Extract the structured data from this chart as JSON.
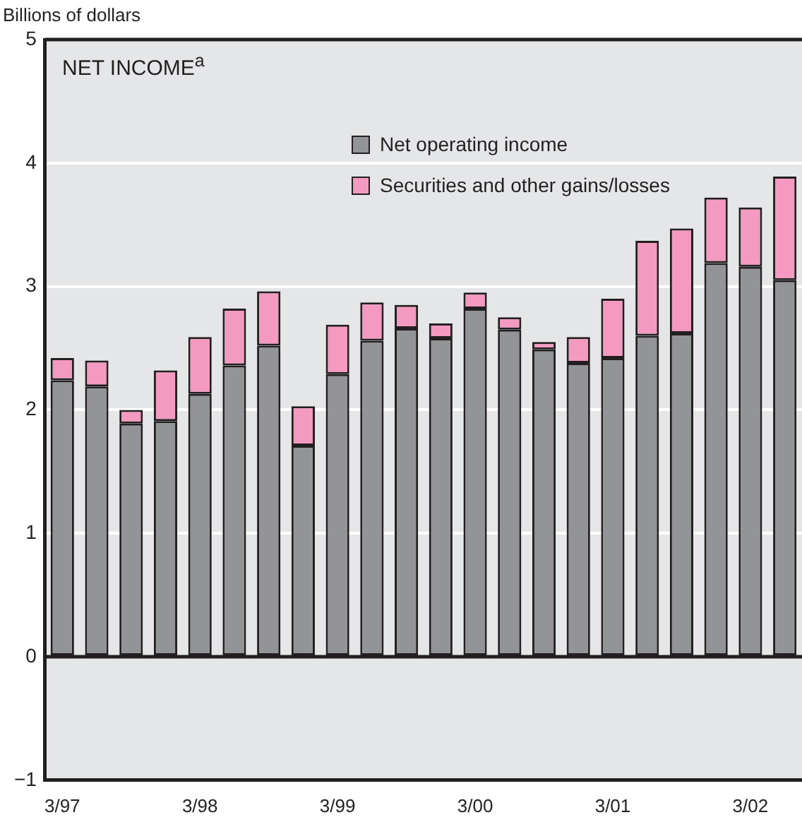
{
  "chart_data": {
    "type": "bar",
    "title": "NET INCOME$^{a}$",
    "ylabel": "Billions of dollars",
    "categories": [
      "3/97",
      null,
      null,
      null,
      "3/98",
      null,
      null,
      null,
      "3/99",
      null,
      null,
      null,
      "3/00",
      null,
      null,
      null,
      "3/01",
      null,
      null,
      null,
      "3/02",
      null
    ],
    "series": [
      {
        "name": "Net operating income",
        "color": "#929497",
        "values": [
          2.24,
          2.19,
          1.89,
          1.91,
          2.13,
          2.36,
          2.52,
          1.71,
          2.29,
          2.56,
          2.66,
          2.58,
          2.82,
          2.65,
          2.49,
          2.38,
          2.42,
          2.6,
          2.62,
          3.19,
          3.16,
          3.05
        ]
      },
      {
        "name": "Securities and other gains/losses",
        "color": "#f49ac1",
        "values": [
          0.18,
          0.21,
          0.11,
          0.41,
          0.46,
          0.46,
          0.44,
          0.32,
          0.4,
          0.31,
          0.19,
          0.12,
          0.13,
          0.1,
          0.06,
          0.21,
          0.48,
          0.77,
          0.85,
          0.53,
          0.48,
          0.84
        ]
      }
    ],
    "stacked": true,
    "ylim": [
      -1,
      5
    ],
    "yticks": [
      {
        "value": -1,
        "label": "−1"
      },
      0,
      1,
      2,
      3,
      4,
      5
    ],
    "grid": "y",
    "legend": "top"
  }
}
